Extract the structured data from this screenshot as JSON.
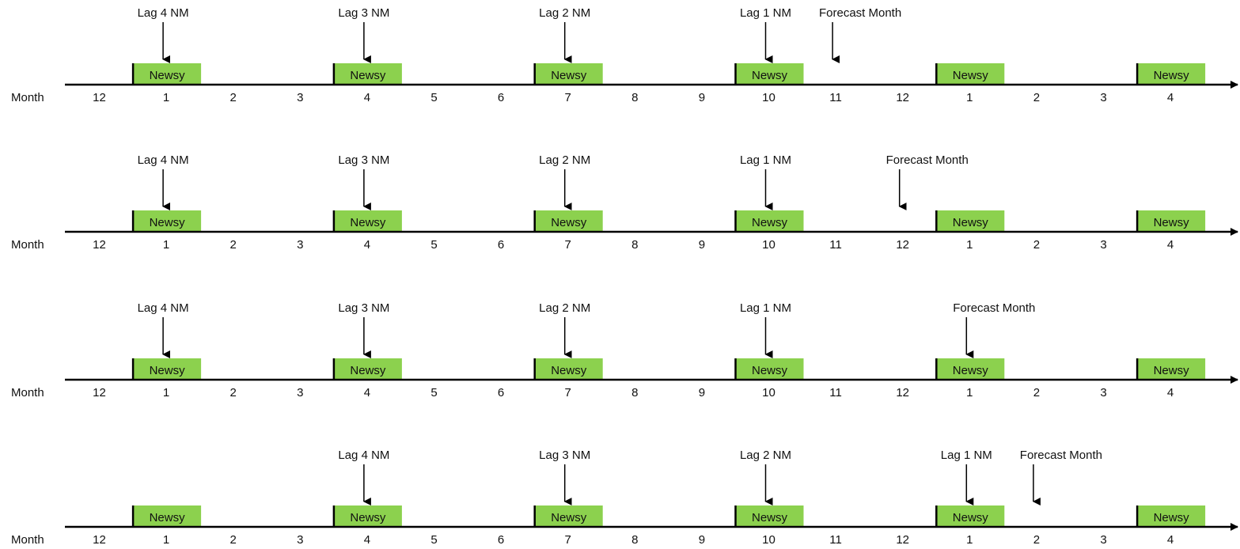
{
  "axis_label": "Month",
  "months": [
    "12",
    "1",
    "2",
    "3",
    "4",
    "5",
    "6",
    "7",
    "8",
    "9",
    "10",
    "11",
    "12",
    "1",
    "2",
    "3",
    "4"
  ],
  "box_label": "Newsy",
  "newsy_month_indices": [
    1,
    4,
    7,
    10,
    13,
    16
  ],
  "colors": {
    "box_fill": "#8cd14e",
    "line": "#000000",
    "text": "#111111"
  },
  "rows": [
    {
      "lags": [
        {
          "label": "Lag 4 NM",
          "month_index": 1
        },
        {
          "label": "Lag 3 NM",
          "month_index": 4
        },
        {
          "label": "Lag 2 NM",
          "month_index": 7
        },
        {
          "label": "Lag 1 NM",
          "month_index": 10
        }
      ],
      "forecast": {
        "label": "Forecast Month",
        "month_index": 11
      }
    },
    {
      "lags": [
        {
          "label": "Lag 4 NM",
          "month_index": 1
        },
        {
          "label": "Lag 3 NM",
          "month_index": 4
        },
        {
          "label": "Lag 2 NM",
          "month_index": 7
        },
        {
          "label": "Lag 1 NM",
          "month_index": 10
        }
      ],
      "forecast": {
        "label": "Forecast Month",
        "month_index": 12
      }
    },
    {
      "lags": [
        {
          "label": "Lag 4 NM",
          "month_index": 1
        },
        {
          "label": "Lag 3 NM",
          "month_index": 4
        },
        {
          "label": "Lag 2 NM",
          "month_index": 7
        },
        {
          "label": "Lag 1 NM",
          "month_index": 10
        }
      ],
      "forecast": {
        "label": "Forecast Month",
        "month_index": 13
      }
    },
    {
      "lags": [
        {
          "label": "Lag 4 NM",
          "month_index": 4
        },
        {
          "label": "Lag 3 NM",
          "month_index": 7
        },
        {
          "label": "Lag 2 NM",
          "month_index": 10
        },
        {
          "label": "Lag 1 NM",
          "month_index": 13
        }
      ],
      "forecast": {
        "label": "Forecast Month",
        "month_index": 14
      }
    }
  ]
}
